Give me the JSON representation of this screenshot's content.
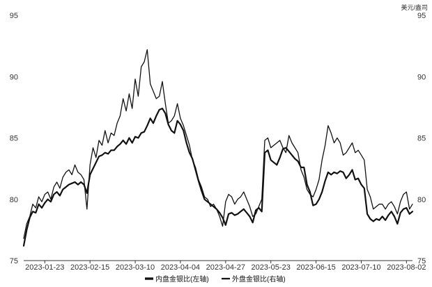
{
  "chart_data": {
    "type": "line",
    "title": "",
    "xlabel": "",
    "ylabel_left": "",
    "ylabel_right": "美元/盎司",
    "ylim_left": [
      75,
      95
    ],
    "ylim_right": [
      75,
      95
    ],
    "yticks": [
      "75",
      "80",
      "85",
      "90",
      "95"
    ],
    "grid": false,
    "legend_position": "bottom-center",
    "x_tick_labels": [
      "2023-01-23",
      "2023-02-15",
      "2023-03-10",
      "2023-04-04",
      "2023-04-27",
      "2023-05-23",
      "2023-06-15",
      "2023-07-10",
      "2023-08-02"
    ],
    "x_tick_positions": [
      7,
      22,
      37,
      52,
      67,
      82,
      97,
      112,
      127
    ],
    "series": [
      {
        "name": "内盘金银比(左轴)",
        "axis": "left",
        "color": "#111111",
        "stroke": 2.2,
        "values": [
          76.2,
          77.5,
          78.5,
          79.0,
          78.9,
          79.6,
          79.3,
          79.7,
          80.0,
          79.8,
          80.4,
          80.6,
          80.3,
          80.8,
          81.0,
          81.2,
          81.3,
          81.4,
          81.2,
          81.4,
          81.2,
          80.5,
          82.0,
          82.5,
          83.0,
          83.5,
          83.6,
          83.8,
          83.7,
          84.0,
          84.0,
          84.3,
          84.5,
          84.8,
          84.5,
          85.0,
          84.6,
          85.1,
          85.0,
          85.4,
          85.5,
          86.0,
          86.6,
          86.2,
          86.8,
          87.3,
          87.4,
          87.0,
          86.1,
          85.6,
          85.4,
          86.4,
          86.1,
          85.6,
          84.6,
          83.8,
          83.3,
          82.4,
          81.5,
          80.7,
          80.0,
          79.8,
          79.6,
          79.4,
          79.2,
          78.9,
          78.5,
          77.9,
          78.8,
          78.9,
          78.7,
          78.8,
          79.0,
          79.2,
          78.9,
          78.6,
          78.1,
          79.1,
          79.3,
          79.0,
          83.8,
          84.0,
          83.2,
          83.0,
          82.8,
          83.4,
          84.1,
          84.2,
          83.9,
          83.6,
          83.3,
          83.1,
          82.6,
          82.6,
          81.2,
          80.6,
          79.5,
          79.6,
          80.0,
          80.6,
          81.5,
          82.2,
          82.0,
          82.2,
          82.1,
          82.3,
          82.2,
          81.7,
          82.0,
          82.4,
          81.6,
          81.7,
          81.2,
          80.9,
          78.8,
          78.4,
          78.2,
          78.4,
          78.3,
          78.6,
          78.3,
          78.7,
          79.0,
          78.6,
          78.0,
          78.9,
          79.2,
          79.3,
          78.8,
          79.0
        ]
      },
      {
        "name": "外盘金银比(右轴)",
        "axis": "right",
        "color": "#111111",
        "stroke": 1.3,
        "values": [
          76.8,
          78.0,
          78.6,
          79.6,
          79.3,
          80.2,
          79.8,
          80.4,
          80.6,
          80.0,
          81.0,
          81.4,
          80.9,
          81.8,
          82.2,
          82.4,
          82.0,
          82.8,
          82.2,
          82.0,
          81.6,
          79.2,
          82.8,
          84.2,
          83.4,
          84.8,
          84.4,
          85.6,
          84.6,
          85.4,
          85.2,
          86.2,
          86.8,
          88.2,
          87.2,
          88.6,
          87.4,
          89.8,
          88.4,
          90.8,
          91.2,
          92.2,
          89.4,
          88.8,
          88.2,
          88.4,
          89.6,
          87.8,
          86.2,
          86.4,
          86.8,
          87.8,
          86.6,
          86.0,
          85.2,
          84.4,
          83.2,
          82.6,
          81.6,
          81.0,
          80.2,
          80.0,
          79.4,
          79.6,
          79.2,
          78.6,
          77.8,
          79.8,
          80.4,
          80.2,
          79.6,
          80.0,
          80.2,
          80.6,
          80.0,
          79.4,
          78.6,
          78.8,
          79.4,
          80.0,
          84.8,
          85.0,
          84.2,
          84.4,
          84.6,
          84.8,
          84.2,
          83.8,
          85.2,
          84.6,
          84.2,
          83.8,
          82.4,
          81.8,
          80.8,
          80.4,
          80.2,
          80.8,
          81.6,
          83.2,
          84.4,
          86.0,
          85.4,
          84.6,
          85.0,
          84.6,
          83.6,
          83.8,
          84.2,
          84.6,
          83.8,
          84.0,
          83.6,
          83.2,
          80.8,
          80.2,
          79.2,
          79.4,
          79.6,
          79.6,
          79.2,
          79.6,
          79.8,
          79.4,
          78.8,
          79.8,
          80.4,
          80.6,
          79.2,
          79.6
        ]
      }
    ]
  }
}
